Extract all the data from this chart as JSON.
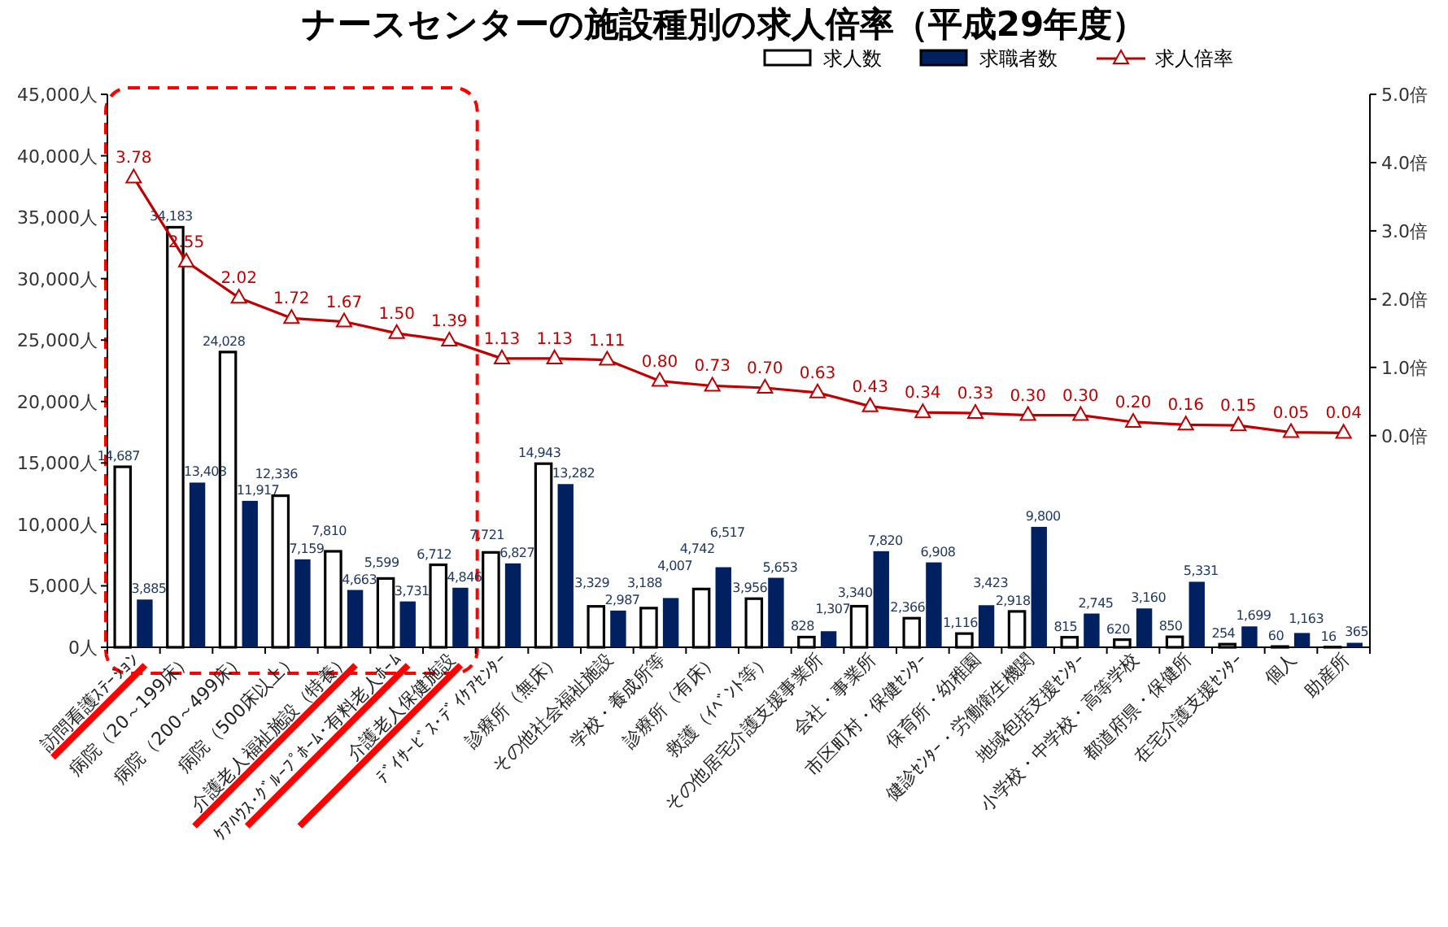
{
  "chart_data": {
    "type": "bar",
    "title": "ナースセンターの施設種別の求人倍率（平成29年度）",
    "categories": [
      "訪問看護ｽﾃｰｼｮﾝ",
      "病院（20～199床）",
      "病院（200～499床）",
      "病院（500床以上）",
      "介護老人福祉施設（特養）",
      "ｹｱﾊｳｽ･ｸﾞﾙｰﾌﾟﾎｰﾑ･有料老人ﾎｰﾑ",
      "介護老人保健施設",
      "ﾃﾞｲｻｰﾋﾞｽ･ﾃﾞｲｹｱｾﾝﾀｰ",
      "診療所（無床）",
      "その他社会福祉施設",
      "学校・養成所等",
      "診療所（有床）",
      "救護（ｲﾍﾞﾝﾄ等）",
      "その他居宅介護支援事業所",
      "会社・事業所",
      "市区町村・保健ｾﾝﾀｰ",
      "保育所・幼稚園",
      "健診ｾﾝﾀｰ・労働衛生機関",
      "地域包括支援ｾﾝﾀｰ",
      "小学校・中学校・高等学校",
      "都道府県・保健所",
      "在宅介護支援ｾﾝﾀｰ",
      "個人",
      "助産所"
    ],
    "series": [
      {
        "name": "求人数",
        "color": "#ffffff",
        "values": [
          14687,
          34183,
          24028,
          12336,
          7810,
          5599,
          6712,
          7721,
          14943,
          3329,
          3188,
          4742,
          3956,
          828,
          3340,
          2366,
          1116,
          2918,
          815,
          620,
          850,
          254,
          60,
          16
        ],
        "value_labels": [
          "14,687",
          "34,183",
          "24,028",
          "12,336",
          "7,810",
          "5,599",
          "6,712",
          "7,721",
          "14,943",
          "3,329",
          "3,188",
          "4,742",
          "3,956",
          "828",
          "3,340",
          "2,366",
          "1,116",
          "2,918",
          "815",
          "620",
          "850",
          "254",
          "60",
          "16"
        ]
      },
      {
        "name": "求職者数",
        "color": "#002060",
        "values": [
          3885,
          13403,
          11917,
          7159,
          4663,
          3731,
          4846,
          6827,
          13282,
          2987,
          4007,
          6517,
          5653,
          1307,
          7820,
          6908,
          3423,
          9800,
          2745,
          3160,
          5331,
          1699,
          1163,
          365
        ],
        "value_labels": [
          "3,885",
          "13,403",
          "11,917",
          "7,159",
          "4,663",
          "3,731",
          "4,846",
          "6,827",
          "13,282",
          "2,987",
          "4,007",
          "6,517",
          "5,653",
          "1,307",
          "7,820",
          "6,908",
          "3,423",
          "9,800",
          "2,745",
          "3,160",
          "5,331",
          "1,699",
          "1,163",
          "365"
        ]
      },
      {
        "name": "求人倍率",
        "type": "line",
        "axis": "y2",
        "color": "#c00000",
        "marker": "triangle",
        "values": [
          3.78,
          2.55,
          2.02,
          1.72,
          1.67,
          1.5,
          1.39,
          1.13,
          1.13,
          1.11,
          0.8,
          0.73,
          0.7,
          0.63,
          0.43,
          0.34,
          0.33,
          0.3,
          0.3,
          0.2,
          0.16,
          0.15,
          0.05,
          0.04
        ],
        "value_labels": [
          "3.78",
          "2.55",
          "2.02",
          "1.72",
          "1.67",
          "1.50",
          "1.39",
          "1.13",
          "1.13",
          "1.11",
          "0.80",
          "0.73",
          "0.70",
          "0.63",
          "0.43",
          "0.34",
          "0.33",
          "0.30",
          "0.30",
          "0.20",
          "0.16",
          "0.15",
          "0.05",
          "0.04"
        ]
      }
    ],
    "ylim": [
      0,
      45000
    ],
    "yticks": [
      {
        "value": 0,
        "label": "0人"
      },
      {
        "value": 5000,
        "label": "5,000人"
      },
      {
        "value": 10000,
        "label": "10,000人"
      },
      {
        "value": 15000,
        "label": "15,000人"
      },
      {
        "value": 20000,
        "label": "20,000人"
      },
      {
        "value": 25000,
        "label": "25,000人"
      },
      {
        "value": 30000,
        "label": "30,000人"
      },
      {
        "value": 35000,
        "label": "35,000人"
      },
      {
        "value": 40000,
        "label": "40,000人"
      },
      {
        "value": 45000,
        "label": "45,000人"
      }
    ],
    "y2lim": [
      -3.1,
      5.0
    ],
    "y2ticks": [
      {
        "value": 0,
        "label": "0.0倍"
      },
      {
        "value": 1,
        "label": "1.0倍"
      },
      {
        "value": 2,
        "label": "2.0倍"
      },
      {
        "value": 3,
        "label": "3.0倍"
      },
      {
        "value": 4,
        "label": "4.0倍"
      },
      {
        "value": 5,
        "label": "5.0倍"
      }
    ],
    "legend": "top right"
  }
}
